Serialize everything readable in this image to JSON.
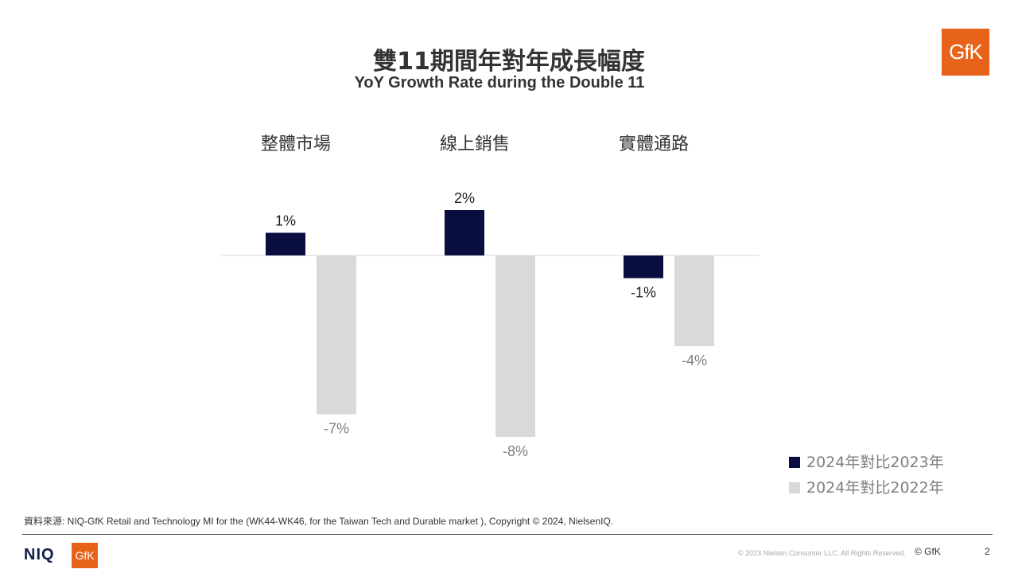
{
  "header": {
    "title": "雙11期間年對年成長幅度",
    "subtitle": "YoY Growth Rate during the Double 11",
    "logo_text": "GfK"
  },
  "colors": {
    "dark": "#0a0e3f",
    "light": "#d9d9d9",
    "accent": "#e8631a"
  },
  "chart_data": {
    "type": "bar",
    "categories": [
      "整體市場",
      "線上銷售",
      "實體通路"
    ],
    "series": [
      {
        "name": "2024年對比2023年",
        "values": [
          1,
          2,
          -1
        ],
        "labels": [
          "1%",
          "2%",
          "-1%"
        ]
      },
      {
        "name": "2024年對比2022年",
        "values": [
          -7,
          -8,
          -4
        ],
        "labels": [
          "-7%",
          "-8%",
          "-4%"
        ]
      }
    ],
    "title": "雙11期間年對年成長幅度",
    "subtitle": "YoY Growth Rate during the Double 11",
    "ylim": [
      -8,
      2
    ],
    "grid": false,
    "legend": "bottom-right"
  },
  "footer": {
    "source": "資料來源: NIQ-GfK Retail and Technology MI for the (WK44-WK46, for the Taiwan Tech and Durable market ), Copyright © 2024, NielsenIQ.",
    "niq_logo": "NIQ",
    "gfk_logo": "GfK",
    "copyright_small": "© 2023 Nielsen Consumer LLC. All Rights Reserved.",
    "copyright_gfk": "© GfK",
    "page_number": "2"
  }
}
